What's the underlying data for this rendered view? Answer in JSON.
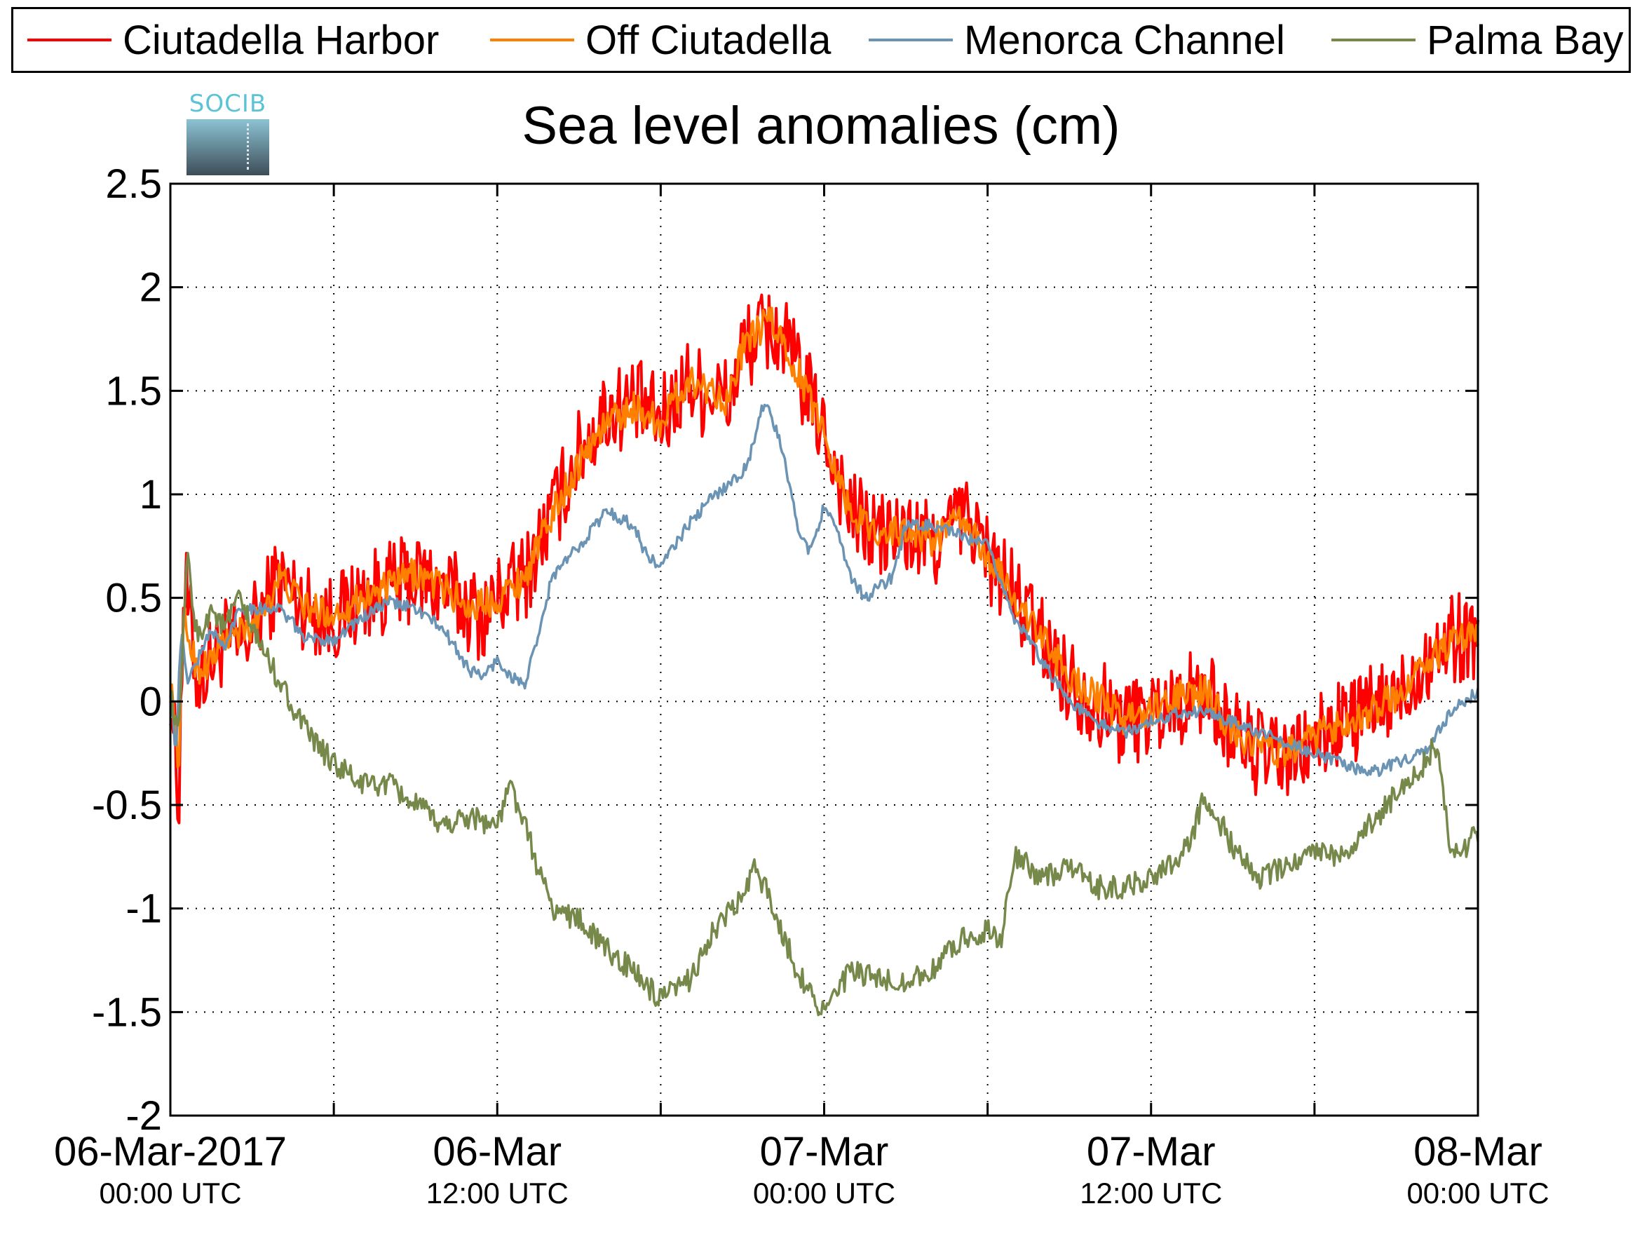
{
  "logo": {
    "text": "SOCIB"
  },
  "chart_data": {
    "type": "line",
    "title": "Sea level anomalies (cm)",
    "ylim": [
      -2,
      2.5
    ],
    "yticks": [
      "2.5",
      "2",
      "1.5",
      "1",
      "0.5",
      "0",
      "-0.5",
      "-1",
      "-1.5",
      "-2"
    ],
    "xlim_hours": [
      0,
      48
    ],
    "xtick_labels": [
      {
        "date": "06-Mar-2017",
        "time": "00:00 UTC"
      },
      {
        "date": "06-Mar",
        "time": "12:00 UTC"
      },
      {
        "date": "07-Mar",
        "time": "00:00 UTC"
      },
      {
        "date": "07-Mar",
        "time": "12:00 UTC"
      },
      {
        "date": "08-Mar",
        "time": "00:00 UTC"
      }
    ],
    "grid": true,
    "legend_position": "top",
    "series": [
      {
        "name": "Ciutadella Harbor",
        "color": "#ff0000",
        "noise": 0.22,
        "x": [
          0,
          0.3,
          0.5,
          1,
          1.5,
          2,
          2.5,
          3,
          4,
          5,
          6,
          7,
          8,
          9,
          10,
          11,
          11.5,
          12,
          13,
          14,
          15,
          16,
          17,
          18,
          19,
          19.5,
          20,
          20.5,
          21,
          22,
          22.5,
          23,
          24,
          25,
          26,
          27,
          28,
          29,
          29.5,
          30,
          31,
          32,
          33,
          34,
          35,
          36,
          37,
          38,
          39,
          40,
          41,
          42,
          43,
          44,
          45,
          46,
          47,
          48
        ],
        "y": [
          0.1,
          -0.5,
          0.6,
          0.1,
          0.2,
          0.3,
          0.25,
          0.35,
          0.6,
          0.45,
          0.4,
          0.5,
          0.55,
          0.6,
          0.55,
          0.45,
          0.4,
          0.5,
          0.6,
          0.9,
          1.2,
          1.4,
          1.45,
          1.35,
          1.55,
          1.5,
          1.5,
          1.45,
          1.7,
          1.8,
          1.75,
          1.6,
          1.3,
          0.9,
          0.8,
          0.8,
          0.75,
          0.9,
          0.85,
          0.7,
          0.5,
          0.3,
          0.1,
          0.0,
          -0.1,
          -0.05,
          0.0,
          0.05,
          -0.15,
          -0.25,
          -0.3,
          -0.2,
          -0.1,
          -0.05,
          0.0,
          0.2,
          0.3,
          0.33
        ]
      },
      {
        "name": "Off Ciutadella",
        "color": "#ff8000",
        "noise": 0.08,
        "x": [
          0,
          0.3,
          0.5,
          1,
          1.5,
          2,
          3,
          4,
          5,
          6,
          7,
          8,
          9,
          10,
          11,
          12,
          13,
          14,
          15,
          16,
          17,
          18,
          19,
          20,
          20.5,
          21,
          22,
          23,
          24,
          25,
          26,
          27,
          28,
          29,
          30,
          31,
          32,
          33,
          34,
          35,
          36,
          37,
          38,
          39,
          40,
          41,
          42,
          43,
          44,
          45,
          46,
          47,
          48
        ],
        "y": [
          0.1,
          -0.3,
          0.4,
          0.15,
          0.2,
          0.3,
          0.35,
          0.6,
          0.45,
          0.42,
          0.5,
          0.55,
          0.62,
          0.55,
          0.45,
          0.5,
          0.6,
          0.9,
          1.15,
          1.35,
          1.42,
          1.35,
          1.55,
          1.5,
          1.45,
          1.7,
          1.85,
          1.6,
          1.3,
          0.9,
          0.82,
          0.82,
          0.78,
          0.88,
          0.7,
          0.5,
          0.3,
          0.12,
          0.02,
          -0.08,
          -0.05,
          0.02,
          0.05,
          -0.15,
          -0.22,
          -0.25,
          -0.18,
          -0.1,
          -0.05,
          0.02,
          0.18,
          0.28,
          0.32
        ]
      },
      {
        "name": "Menorca Channel",
        "color": "#6a93b4",
        "noise": 0.03,
        "x": [
          0,
          0.2,
          0.4,
          0.6,
          1,
          1.5,
          2,
          2.5,
          3,
          4,
          5,
          5.5,
          6,
          7,
          8,
          9,
          10,
          10.5,
          11,
          11.5,
          12,
          12.5,
          13,
          13.5,
          14,
          15,
          16,
          17,
          17.5,
          18,
          19,
          20,
          20.5,
          21,
          21.3,
          21.7,
          22,
          22.5,
          23,
          23.5,
          24,
          24.5,
          25,
          25.5,
          26,
          26.5,
          27,
          28,
          29,
          30,
          31,
          32,
          33,
          34,
          35,
          36,
          37,
          38,
          39,
          40,
          41,
          42,
          43,
          44,
          45,
          46,
          47,
          48
        ],
        "y": [
          0.05,
          -0.25,
          0.35,
          0.1,
          0.2,
          0.35,
          0.25,
          0.45,
          0.45,
          0.45,
          0.3,
          0.3,
          0.3,
          0.4,
          0.48,
          0.45,
          0.35,
          0.25,
          0.15,
          0.12,
          0.2,
          0.12,
          0.08,
          0.3,
          0.6,
          0.75,
          0.92,
          0.85,
          0.7,
          0.65,
          0.85,
          1.0,
          1.05,
          1.1,
          1.2,
          1.42,
          1.4,
          1.2,
          0.85,
          0.72,
          0.95,
          0.8,
          0.6,
          0.5,
          0.55,
          0.6,
          0.85,
          0.85,
          0.8,
          0.75,
          0.4,
          0.2,
          0.0,
          -0.1,
          -0.15,
          -0.1,
          -0.05,
          -0.05,
          -0.1,
          -0.15,
          -0.2,
          -0.25,
          -0.3,
          -0.35,
          -0.3,
          -0.25,
          -0.05,
          0.05
        ]
      },
      {
        "name": "Palma Bay",
        "color": "#76894a",
        "noise": 0.06,
        "x": [
          0,
          0.3,
          0.6,
          1,
          1.5,
          2,
          2.5,
          3,
          4,
          5,
          6,
          7,
          8,
          9,
          10,
          11,
          12,
          12.5,
          13,
          14,
          15,
          16,
          17,
          18,
          19,
          20,
          21,
          21.5,
          22,
          23,
          24,
          25,
          26,
          27,
          28,
          29,
          30,
          30.5,
          31,
          32,
          33,
          34,
          35,
          36,
          37,
          37.5,
          38,
          39,
          40,
          41,
          42,
          43,
          44,
          45,
          46,
          46.5,
          47,
          48
        ],
        "y": [
          0.05,
          -0.2,
          0.7,
          0.3,
          0.45,
          0.35,
          0.5,
          0.35,
          0.1,
          -0.15,
          -0.3,
          -0.4,
          -0.4,
          -0.5,
          -0.6,
          -0.55,
          -0.6,
          -0.4,
          -0.6,
          -1.0,
          -1.05,
          -1.2,
          -1.3,
          -1.45,
          -1.35,
          -1.1,
          -0.95,
          -0.8,
          -0.95,
          -1.3,
          -1.5,
          -1.3,
          -1.35,
          -1.35,
          -1.3,
          -1.15,
          -1.1,
          -1.15,
          -0.75,
          -0.85,
          -0.8,
          -0.9,
          -0.9,
          -0.85,
          -0.75,
          -0.65,
          -0.45,
          -0.7,
          -0.85,
          -0.8,
          -0.7,
          -0.75,
          -0.6,
          -0.45,
          -0.3,
          -0.2,
          -0.75,
          -0.65
        ]
      }
    ]
  }
}
